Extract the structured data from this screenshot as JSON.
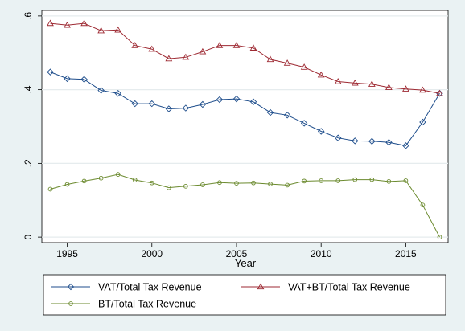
{
  "chart_data": {
    "type": "line",
    "xlabel": "Year",
    "ylabel": "",
    "xlim": [
      1994,
      2017
    ],
    "ylim": [
      0,
      0.6
    ],
    "x_ticks": [
      1995,
      2000,
      2005,
      2010,
      2015
    ],
    "y_ticks": [
      0,
      0.2,
      0.4,
      0.6
    ],
    "y_tick_labels": [
      "0",
      ".2",
      ".4",
      ".6"
    ],
    "grid": "horizontal",
    "legend_position": "bottom",
    "x": [
      1994,
      1995,
      1996,
      1997,
      1998,
      1999,
      2000,
      2001,
      2002,
      2003,
      2004,
      2005,
      2006,
      2007,
      2008,
      2009,
      2010,
      2011,
      2012,
      2013,
      2014,
      2015,
      2016,
      2017
    ],
    "series": [
      {
        "name": "VAT/Total Tax Revenue",
        "color": "#1f4e8c",
        "marker": "diamond",
        "values": [
          0.448,
          0.43,
          0.428,
          0.398,
          0.39,
          0.362,
          0.362,
          0.348,
          0.35,
          0.36,
          0.373,
          0.375,
          0.367,
          0.338,
          0.331,
          0.309,
          0.287,
          0.269,
          0.261,
          0.26,
          0.257,
          0.248,
          0.312,
          0.39
        ]
      },
      {
        "name": "VAT+BT/Total Tax Revenue",
        "color": "#9e2a33",
        "marker": "triangle",
        "values": [
          0.58,
          0.575,
          0.58,
          0.56,
          0.562,
          0.52,
          0.51,
          0.484,
          0.488,
          0.503,
          0.52,
          0.52,
          0.513,
          0.482,
          0.472,
          0.461,
          0.44,
          0.422,
          0.418,
          0.415,
          0.406,
          0.402,
          0.399,
          0.39
        ]
      },
      {
        "name": "BT/Total Tax Revenue",
        "color": "#6b8a2e",
        "marker": "circle",
        "values": [
          0.13,
          0.143,
          0.152,
          0.16,
          0.17,
          0.155,
          0.147,
          0.134,
          0.138,
          0.142,
          0.148,
          0.146,
          0.147,
          0.144,
          0.141,
          0.152,
          0.153,
          0.153,
          0.156,
          0.156,
          0.151,
          0.153,
          0.087,
          0.0
        ]
      }
    ]
  }
}
